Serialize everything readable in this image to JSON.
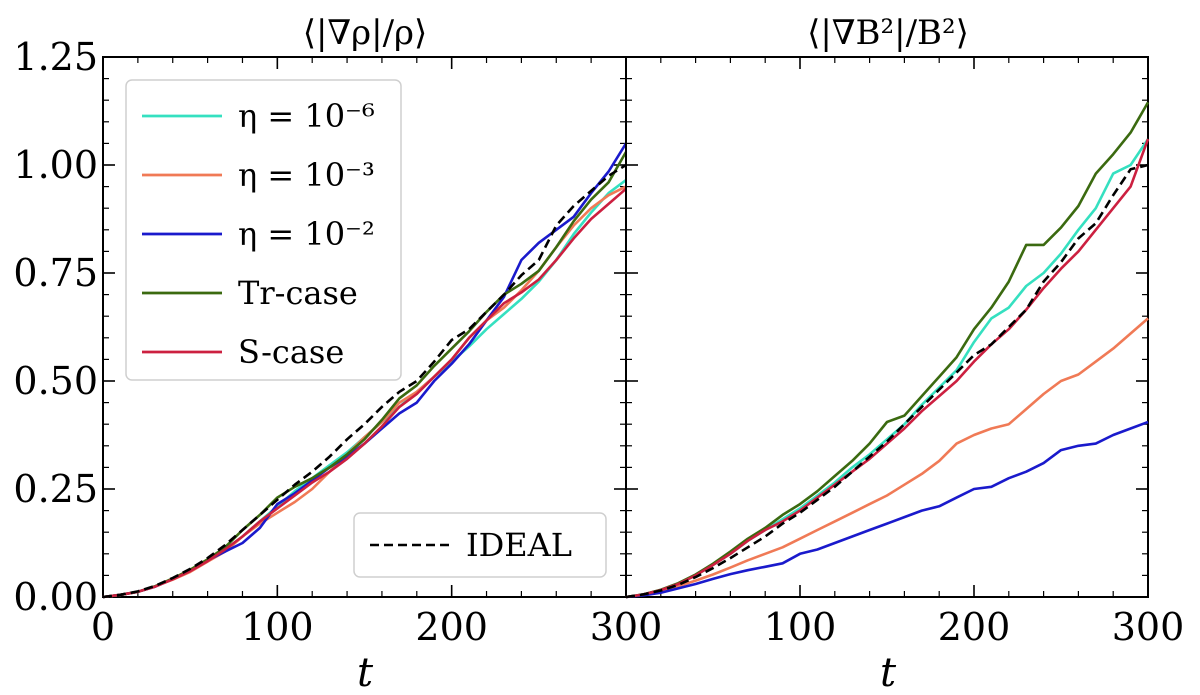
{
  "chart_data": [
    {
      "type": "line",
      "title": "⟨|∇ρ|/ρ⟩",
      "xlabel": "t",
      "ylabel": "",
      "xlim": [
        0,
        300
      ],
      "ylim": [
        0,
        1.25
      ],
      "xticks": [
        "0",
        "100",
        "200",
        "300"
      ],
      "yticks": [
        "0.00",
        "0.25",
        "0.50",
        "0.75",
        "1.00",
        "1.25"
      ],
      "legend": {
        "placement": "upper-left",
        "entries": [
          "η = 10⁻⁶",
          "η = 10⁻³",
          "η = 10⁻²",
          "Tr-case",
          "S-case"
        ]
      },
      "legend2": {
        "placement": "lower-right",
        "entries": [
          "IDEAL"
        ]
      },
      "x": [
        0,
        10,
        20,
        30,
        40,
        50,
        60,
        70,
        80,
        90,
        100,
        110,
        120,
        130,
        140,
        150,
        160,
        170,
        180,
        190,
        200,
        210,
        220,
        230,
        240,
        250,
        260,
        270,
        280,
        290,
        300
      ],
      "series": [
        {
          "name": "η = 10⁻⁶",
          "color": "#35e0c0",
          "dash": false,
          "values": [
            0,
            0.005,
            0.012,
            0.025,
            0.042,
            0.062,
            0.085,
            0.11,
            0.14,
            0.175,
            0.21,
            0.245,
            0.275,
            0.305,
            0.335,
            0.37,
            0.405,
            0.44,
            0.475,
            0.51,
            0.545,
            0.58,
            0.62,
            0.655,
            0.69,
            0.73,
            0.78,
            0.84,
            0.89,
            0.935,
            0.965
          ]
        },
        {
          "name": "η = 10⁻³",
          "color": "#f07a56",
          "dash": false,
          "values": [
            0,
            0.005,
            0.012,
            0.025,
            0.04,
            0.058,
            0.082,
            0.105,
            0.14,
            0.17,
            0.195,
            0.22,
            0.25,
            0.29,
            0.33,
            0.37,
            0.405,
            0.45,
            0.475,
            0.51,
            0.55,
            0.6,
            0.64,
            0.67,
            0.71,
            0.755,
            0.81,
            0.86,
            0.9,
            0.93,
            0.95
          ]
        },
        {
          "name": "η = 10⁻²",
          "color": "#1a1acc",
          "dash": false,
          "values": [
            0,
            0.005,
            0.012,
            0.024,
            0.042,
            0.062,
            0.085,
            0.105,
            0.125,
            0.16,
            0.215,
            0.24,
            0.27,
            0.3,
            0.325,
            0.355,
            0.39,
            0.425,
            0.45,
            0.5,
            0.54,
            0.585,
            0.64,
            0.695,
            0.78,
            0.82,
            0.85,
            0.88,
            0.935,
            0.985,
            1.05
          ]
        },
        {
          "name": "Tr-case",
          "color": "#3b6a10",
          "dash": false,
          "values": [
            0,
            0.005,
            0.012,
            0.025,
            0.043,
            0.063,
            0.087,
            0.115,
            0.155,
            0.19,
            0.23,
            0.255,
            0.275,
            0.3,
            0.33,
            0.365,
            0.41,
            0.46,
            0.49,
            0.535,
            0.575,
            0.615,
            0.66,
            0.7,
            0.725,
            0.755,
            0.81,
            0.87,
            0.92,
            0.96,
            1.03
          ]
        },
        {
          "name": "S-case",
          "color": "#cc2040",
          "dash": false,
          "values": [
            0,
            0.005,
            0.012,
            0.024,
            0.041,
            0.06,
            0.083,
            0.11,
            0.14,
            0.175,
            0.205,
            0.235,
            0.265,
            0.29,
            0.32,
            0.355,
            0.395,
            0.44,
            0.47,
            0.51,
            0.55,
            0.6,
            0.64,
            0.68,
            0.705,
            0.735,
            0.78,
            0.83,
            0.875,
            0.91,
            0.945
          ]
        },
        {
          "name": "IDEAL",
          "color": "#000000",
          "dash": true,
          "values": [
            0,
            0.005,
            0.013,
            0.026,
            0.044,
            0.065,
            0.09,
            0.12,
            0.155,
            0.19,
            0.225,
            0.26,
            0.29,
            0.325,
            0.365,
            0.4,
            0.44,
            0.475,
            0.5,
            0.545,
            0.595,
            0.62,
            0.66,
            0.7,
            0.745,
            0.78,
            0.86,
            0.905,
            0.94,
            0.975,
            1.0
          ]
        }
      ]
    },
    {
      "type": "line",
      "title": "⟨|∇B²|/B²⟩",
      "xlabel": "t",
      "ylabel": "",
      "xlim": [
        0,
        300
      ],
      "ylim": [
        0,
        1.25
      ],
      "xticks": [
        "100",
        "200",
        "300"
      ],
      "x": [
        0,
        10,
        20,
        30,
        40,
        50,
        60,
        70,
        80,
        90,
        100,
        110,
        120,
        130,
        140,
        150,
        160,
        170,
        180,
        190,
        200,
        210,
        220,
        230,
        240,
        250,
        260,
        270,
        280,
        290,
        300
      ],
      "series": [
        {
          "name": "η = 10⁻⁶",
          "color": "#35e0c0",
          "dash": false,
          "values": [
            0,
            0.006,
            0.016,
            0.03,
            0.05,
            0.075,
            0.1,
            0.13,
            0.155,
            0.18,
            0.205,
            0.235,
            0.265,
            0.3,
            0.33,
            0.365,
            0.4,
            0.445,
            0.485,
            0.525,
            0.59,
            0.645,
            0.67,
            0.72,
            0.75,
            0.795,
            0.85,
            0.9,
            0.98,
            1.0,
            1.06
          ]
        },
        {
          "name": "η = 10⁻³",
          "color": "#f07a56",
          "dash": false,
          "values": [
            0,
            0.005,
            0.014,
            0.025,
            0.038,
            0.052,
            0.068,
            0.085,
            0.1,
            0.115,
            0.135,
            0.155,
            0.175,
            0.195,
            0.215,
            0.235,
            0.26,
            0.285,
            0.315,
            0.355,
            0.375,
            0.39,
            0.4,
            0.435,
            0.47,
            0.5,
            0.515,
            0.545,
            0.575,
            0.61,
            0.645
          ]
        },
        {
          "name": "η = 10⁻²",
          "color": "#1a1acc",
          "dash": false,
          "values": [
            0,
            0.004,
            0.01,
            0.02,
            0.03,
            0.042,
            0.053,
            0.062,
            0.07,
            0.078,
            0.1,
            0.11,
            0.125,
            0.14,
            0.155,
            0.17,
            0.185,
            0.2,
            0.21,
            0.23,
            0.25,
            0.255,
            0.275,
            0.29,
            0.31,
            0.34,
            0.35,
            0.355,
            0.375,
            0.39,
            0.405
          ]
        },
        {
          "name": "Tr-case",
          "color": "#3b6a10",
          "dash": false,
          "values": [
            0,
            0.006,
            0.017,
            0.032,
            0.052,
            0.077,
            0.105,
            0.135,
            0.16,
            0.19,
            0.215,
            0.245,
            0.28,
            0.315,
            0.355,
            0.405,
            0.42,
            0.465,
            0.51,
            0.555,
            0.62,
            0.67,
            0.73,
            0.815,
            0.815,
            0.855,
            0.905,
            0.98,
            1.025,
            1.075,
            1.145
          ]
        },
        {
          "name": "S-case",
          "color": "#cc2040",
          "dash": false,
          "values": [
            0,
            0.006,
            0.016,
            0.03,
            0.05,
            0.074,
            0.1,
            0.13,
            0.155,
            0.175,
            0.2,
            0.23,
            0.26,
            0.29,
            0.32,
            0.355,
            0.39,
            0.43,
            0.465,
            0.5,
            0.545,
            0.585,
            0.62,
            0.665,
            0.715,
            0.76,
            0.8,
            0.85,
            0.9,
            0.95,
            1.06
          ]
        },
        {
          "name": "IDEAL",
          "color": "#000000",
          "dash": true,
          "values": [
            0,
            0.006,
            0.015,
            0.028,
            0.046,
            0.067,
            0.09,
            0.115,
            0.14,
            0.17,
            0.195,
            0.225,
            0.255,
            0.29,
            0.325,
            0.36,
            0.4,
            0.44,
            0.48,
            0.52,
            0.56,
            0.585,
            0.625,
            0.665,
            0.73,
            0.775,
            0.83,
            0.865,
            0.93,
            0.99,
            1.0
          ]
        }
      ]
    }
  ]
}
